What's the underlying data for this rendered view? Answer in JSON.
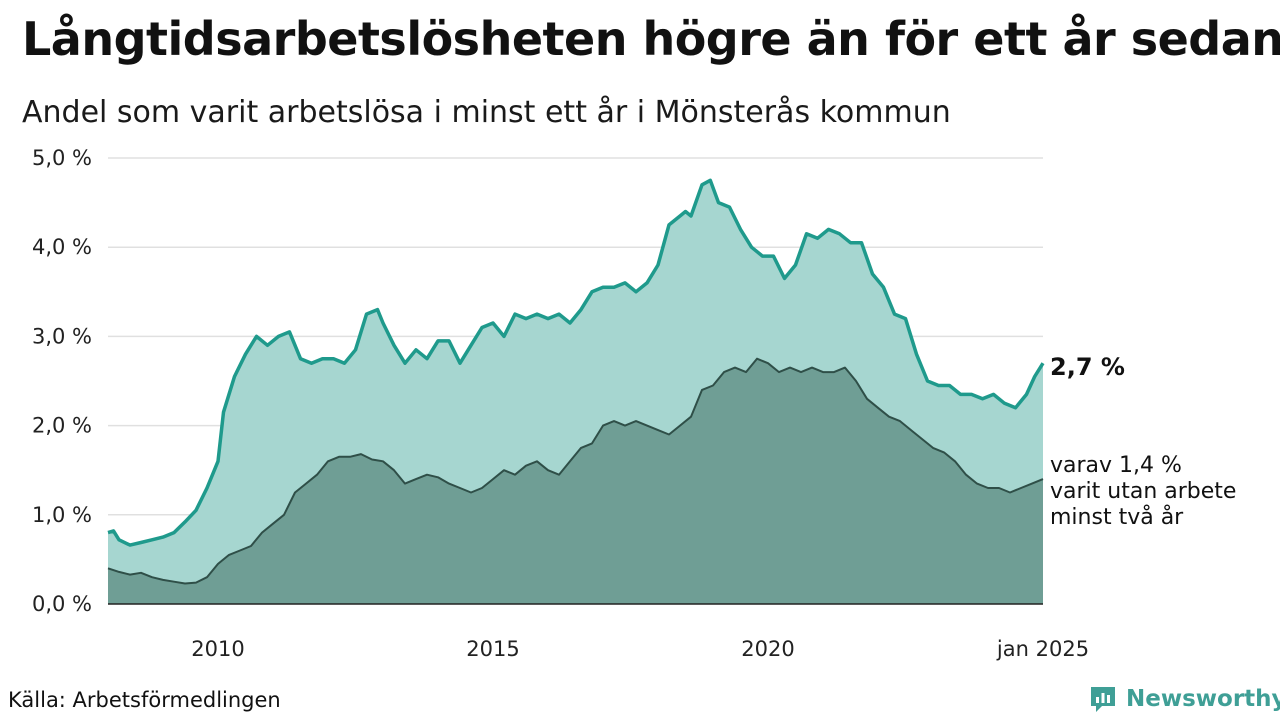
{
  "header": {
    "title": "Långtidsarbetslösheten högre än för ett år sedan",
    "subtitle": "Andel som varit arbetslösa i minst ett år i Mönsterås kommun"
  },
  "footer": {
    "source": "Källa: Arbetsförmedlingen",
    "brand": "Newsworthy"
  },
  "colors": {
    "upper_fill": "#a6d6d0",
    "upper_line": "#1f9a8c",
    "lower_fill": "#6f9e95",
    "lower_line": "#2f4f48",
    "grid": "#e0e0e0",
    "brand": "#3f9f96"
  },
  "chart_data": {
    "type": "area",
    "ylim": [
      0,
      5
    ],
    "yticks": [
      0,
      1,
      2,
      3,
      4,
      5
    ],
    "ytick_labels": [
      "0,0 %",
      "1,0 %",
      "2,0 %",
      "3,0 %",
      "4,0 %",
      "5,0 %"
    ],
    "xlim": [
      2008.0,
      2025.0
    ],
    "xticks": [
      2010,
      2015,
      2020,
      2025
    ],
    "xtick_labels": [
      "2010",
      "2015",
      "2020",
      "jan 2025"
    ],
    "grid": true,
    "end_label": "2,7 %",
    "annotation": [
      "varav 1,4 %",
      "varit utan arbete",
      "minst två år"
    ],
    "series": [
      {
        "key": "minst_ett_ar",
        "x": [
          2008.0,
          2008.1,
          2008.2,
          2008.4,
          2008.6,
          2008.8,
          2009.0,
          2009.2,
          2009.4,
          2009.6,
          2009.8,
          2010.0,
          2010.1,
          2010.3,
          2010.5,
          2010.7,
          2010.9,
          2011.1,
          2011.3,
          2011.5,
          2011.7,
          2011.9,
          2012.1,
          2012.3,
          2012.5,
          2012.7,
          2012.9,
          2013.0,
          2013.2,
          2013.4,
          2013.6,
          2013.8,
          2014.0,
          2014.2,
          2014.4,
          2014.6,
          2014.8,
          2015.0,
          2015.2,
          2015.4,
          2015.6,
          2015.8,
          2016.0,
          2016.2,
          2016.4,
          2016.6,
          2016.8,
          2017.0,
          2017.2,
          2017.4,
          2017.6,
          2017.8,
          2018.0,
          2018.2,
          2018.4,
          2018.5,
          2018.6,
          2018.8,
          2018.95,
          2019.1,
          2019.3,
          2019.5,
          2019.7,
          2019.9,
          2020.1,
          2020.3,
          2020.5,
          2020.7,
          2020.9,
          2021.1,
          2021.3,
          2021.5,
          2021.7,
          2021.9,
          2022.1,
          2022.3,
          2022.5,
          2022.7,
          2022.9,
          2023.1,
          2023.3,
          2023.5,
          2023.7,
          2023.9,
          2024.1,
          2024.3,
          2024.5,
          2024.7,
          2024.85,
          2025.0
        ],
        "y": [
          0.8,
          0.82,
          0.72,
          0.66,
          0.69,
          0.72,
          0.75,
          0.8,
          0.92,
          1.05,
          1.3,
          1.6,
          2.15,
          2.55,
          2.8,
          3.0,
          2.9,
          3.0,
          3.05,
          2.75,
          2.7,
          2.75,
          2.75,
          2.7,
          2.85,
          3.25,
          3.3,
          3.15,
          2.9,
          2.7,
          2.85,
          2.75,
          2.95,
          2.95,
          2.7,
          2.9,
          3.1,
          3.15,
          3.0,
          3.25,
          3.2,
          3.25,
          3.2,
          3.25,
          3.15,
          3.3,
          3.5,
          3.55,
          3.55,
          3.6,
          3.5,
          3.6,
          3.8,
          4.25,
          4.35,
          4.4,
          4.35,
          4.7,
          4.75,
          4.5,
          4.45,
          4.2,
          4.0,
          3.9,
          3.9,
          3.65,
          3.8,
          4.15,
          4.1,
          4.2,
          4.15,
          4.05,
          4.05,
          3.7,
          3.55,
          3.25,
          3.2,
          2.8,
          2.5,
          2.45,
          2.45,
          2.35,
          2.35,
          2.3,
          2.35,
          2.25,
          2.2,
          2.35,
          2.55,
          2.7
        ]
      },
      {
        "key": "minst_tva_ar",
        "x": [
          2008.0,
          2008.2,
          2008.4,
          2008.6,
          2008.8,
          2009.0,
          2009.2,
          2009.4,
          2009.6,
          2009.8,
          2010.0,
          2010.2,
          2010.4,
          2010.6,
          2010.8,
          2011.0,
          2011.2,
          2011.4,
          2011.6,
          2011.8,
          2012.0,
          2012.2,
          2012.4,
          2012.6,
          2012.8,
          2013.0,
          2013.2,
          2013.4,
          2013.6,
          2013.8,
          2014.0,
          2014.2,
          2014.4,
          2014.6,
          2014.8,
          2015.0,
          2015.2,
          2015.4,
          2015.6,
          2015.8,
          2016.0,
          2016.2,
          2016.4,
          2016.6,
          2016.8,
          2017.0,
          2017.2,
          2017.4,
          2017.6,
          2017.8,
          2018.0,
          2018.2,
          2018.4,
          2018.6,
          2018.8,
          2019.0,
          2019.2,
          2019.4,
          2019.6,
          2019.8,
          2020.0,
          2020.2,
          2020.4,
          2020.6,
          2020.8,
          2021.0,
          2021.2,
          2021.4,
          2021.6,
          2021.8,
          2022.0,
          2022.2,
          2022.4,
          2022.6,
          2022.8,
          2023.0,
          2023.2,
          2023.4,
          2023.6,
          2023.8,
          2024.0,
          2024.2,
          2024.4,
          2024.6,
          2024.8,
          2025.0
        ],
        "y": [
          0.4,
          0.36,
          0.33,
          0.35,
          0.3,
          0.27,
          0.25,
          0.23,
          0.24,
          0.3,
          0.45,
          0.55,
          0.6,
          0.65,
          0.8,
          0.9,
          1.0,
          1.25,
          1.35,
          1.45,
          1.6,
          1.65,
          1.65,
          1.68,
          1.62,
          1.6,
          1.5,
          1.35,
          1.4,
          1.45,
          1.42,
          1.35,
          1.3,
          1.25,
          1.3,
          1.4,
          1.5,
          1.45,
          1.55,
          1.6,
          1.5,
          1.45,
          1.6,
          1.75,
          1.8,
          2.0,
          2.05,
          2.0,
          2.05,
          2.0,
          1.95,
          1.9,
          2.0,
          2.1,
          2.4,
          2.45,
          2.6,
          2.65,
          2.6,
          2.75,
          2.7,
          2.6,
          2.65,
          2.6,
          2.65,
          2.6,
          2.6,
          2.65,
          2.5,
          2.3,
          2.2,
          2.1,
          2.05,
          1.95,
          1.85,
          1.75,
          1.7,
          1.6,
          1.45,
          1.35,
          1.3,
          1.3,
          1.25,
          1.3,
          1.35,
          1.4
        ]
      }
    ]
  }
}
